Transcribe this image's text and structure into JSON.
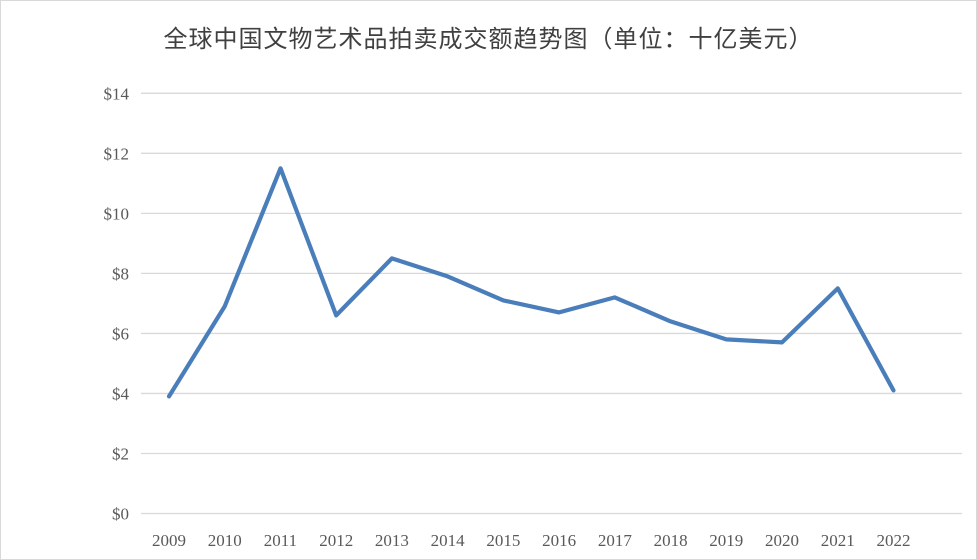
{
  "page": {
    "background_color": "#ffffff",
    "border_color": "#d9d9d9"
  },
  "chart_data": {
    "type": "line",
    "title": "全球中国文物艺术品拍卖成交额趋势图（单位：十亿美元）",
    "categories": [
      "2009",
      "2010",
      "2011",
      "2012",
      "2013",
      "2014",
      "2015",
      "2016",
      "2017",
      "2018",
      "2019",
      "2020",
      "2021",
      "2022"
    ],
    "series": [
      {
        "name": "全球中国文物艺术品拍卖成交额",
        "values": [
          3.9,
          6.9,
          11.5,
          6.6,
          8.5,
          7.9,
          7.1,
          6.7,
          7.2,
          6.4,
          5.8,
          5.7,
          7.5,
          4.1
        ]
      }
    ],
    "xlabel": "",
    "ylabel": "",
    "ylim": [
      0,
      14
    ],
    "ytick_interval": 2,
    "ytick_labels": [
      "$0",
      "$2",
      "$4",
      "$6",
      "$8",
      "$10",
      "$12",
      "$14"
    ],
    "grid": "horizontal",
    "legend_position": "none",
    "colors": {
      "line": "#4A7EBB",
      "gridline": "#D9D9D9",
      "tick_label": "#595959",
      "title": "#404040"
    }
  }
}
